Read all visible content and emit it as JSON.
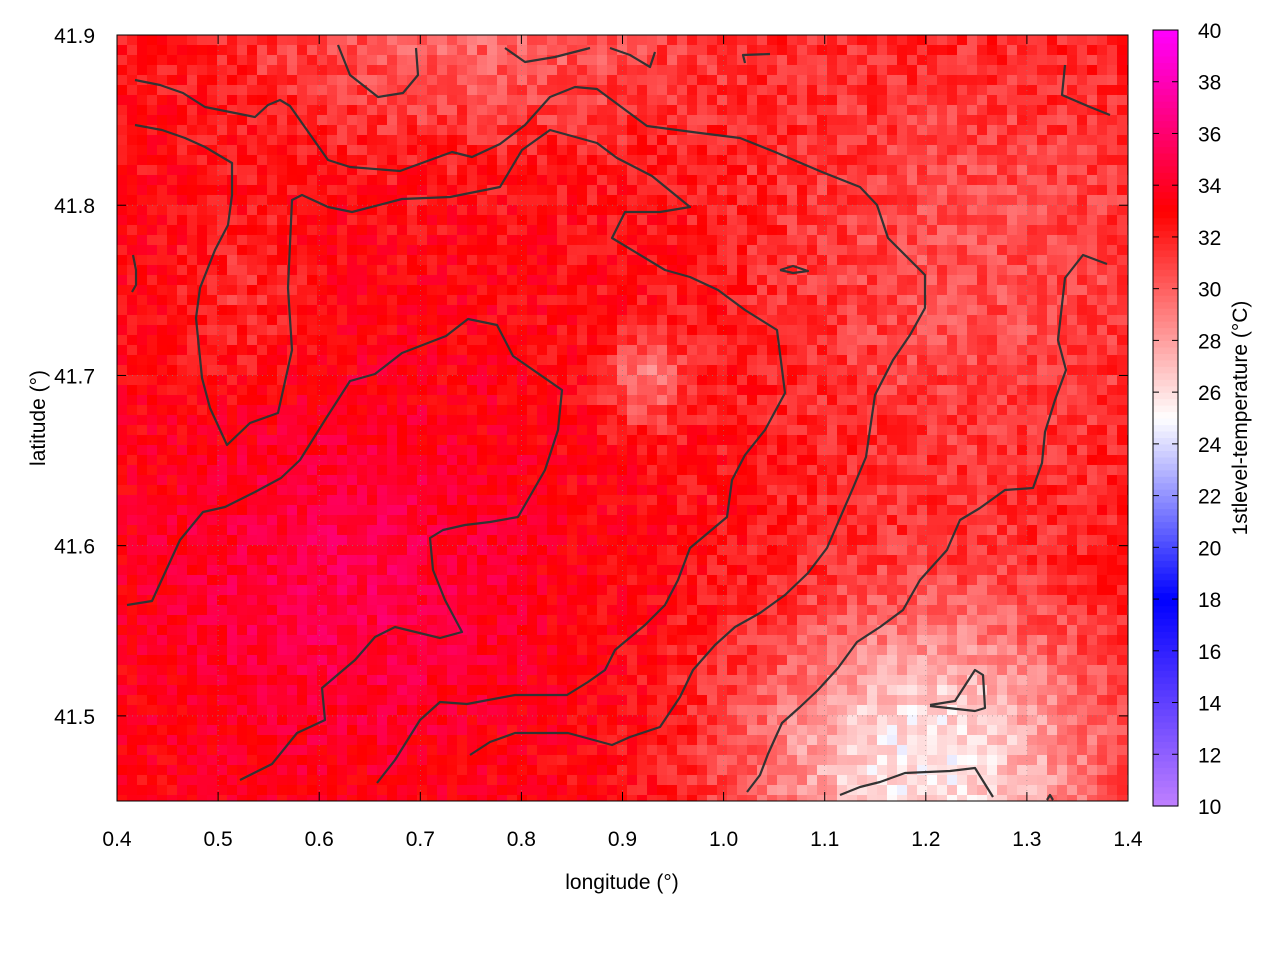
{
  "chart_data": {
    "type": "heatmap",
    "title": "",
    "xlabel": "longitude (°)",
    "ylabel": "latitude (°)",
    "colorbar_label": "1stlevel-temperature (°C)",
    "xlim": [
      0.4,
      1.4
    ],
    "ylim": [
      41.45,
      41.9
    ],
    "x_ticks": [
      "0.4",
      "0.5",
      "0.6",
      "0.7",
      "0.8",
      "0.9",
      "1.0",
      "1.1",
      "1.2",
      "1.3",
      "1.4"
    ],
    "y_ticks": [
      "41.5",
      "41.6",
      "41.7",
      "41.8",
      "41.9"
    ],
    "colorbar_range": [
      10,
      40
    ],
    "colorbar_ticks": [
      "10",
      "12",
      "14",
      "16",
      "18",
      "20",
      "22",
      "24",
      "26",
      "28",
      "30",
      "32",
      "34",
      "36",
      "38",
      "40"
    ],
    "palette": [
      {
        "value": 10,
        "color": "#c080ff"
      },
      {
        "value": 18,
        "color": "#0000ff"
      },
      {
        "value": 25,
        "color": "#ffffff"
      },
      {
        "value": 33,
        "color": "#ff0000"
      },
      {
        "value": 40,
        "color": "#ff00ff"
      }
    ],
    "grid": true,
    "contour_color": "#333333",
    "typical_values": {
      "southwest": 35,
      "center": 33,
      "north": 30,
      "southeast": 25.5
    }
  }
}
